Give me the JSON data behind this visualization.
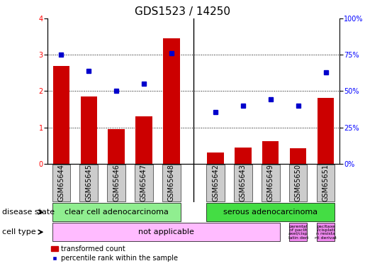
{
  "title": "GDS1523 / 14250",
  "samples": [
    "GSM65644",
    "GSM65645",
    "GSM65646",
    "GSM65647",
    "GSM65648",
    "GSM65642",
    "GSM65643",
    "GSM65649",
    "GSM65650",
    "GSM65651"
  ],
  "bar_values": [
    2.7,
    1.85,
    0.95,
    1.3,
    3.45,
    0.3,
    0.45,
    0.62,
    0.42,
    1.82
  ],
  "dot_values": [
    3.0,
    2.55,
    2.0,
    2.2,
    3.05,
    1.42,
    1.6,
    1.78,
    1.6,
    2.52
  ],
  "bar_color": "#cc0000",
  "dot_color": "#0000cc",
  "ylim_left": [
    0,
    4
  ],
  "ylim_right": [
    0,
    100
  ],
  "yticks_left": [
    0,
    1,
    2,
    3,
    4
  ],
  "yticks_right": [
    0,
    25,
    50,
    75,
    100
  ],
  "yticklabels_right": [
    "0%",
    "25%",
    "50%",
    "75%",
    "100%"
  ],
  "legend_bar_label": "transformed count",
  "legend_dot_label": "percentile rank within the sample",
  "disease_state_label": "disease state",
  "cell_type_label": "cell type",
  "bar_width": 0.6,
  "title_fontsize": 11,
  "tick_fontsize": 7,
  "label_fontsize": 8,
  "annot_fontsize": 8,
  "small_text_fontsize": 4.5,
  "color_cc": "#90ee90",
  "color_sa": "#44dd44",
  "color_na": "#ffbbff",
  "color_special": "#ee88ee",
  "color_xtick_bg": "#cccccc",
  "sep_color": "#555555"
}
